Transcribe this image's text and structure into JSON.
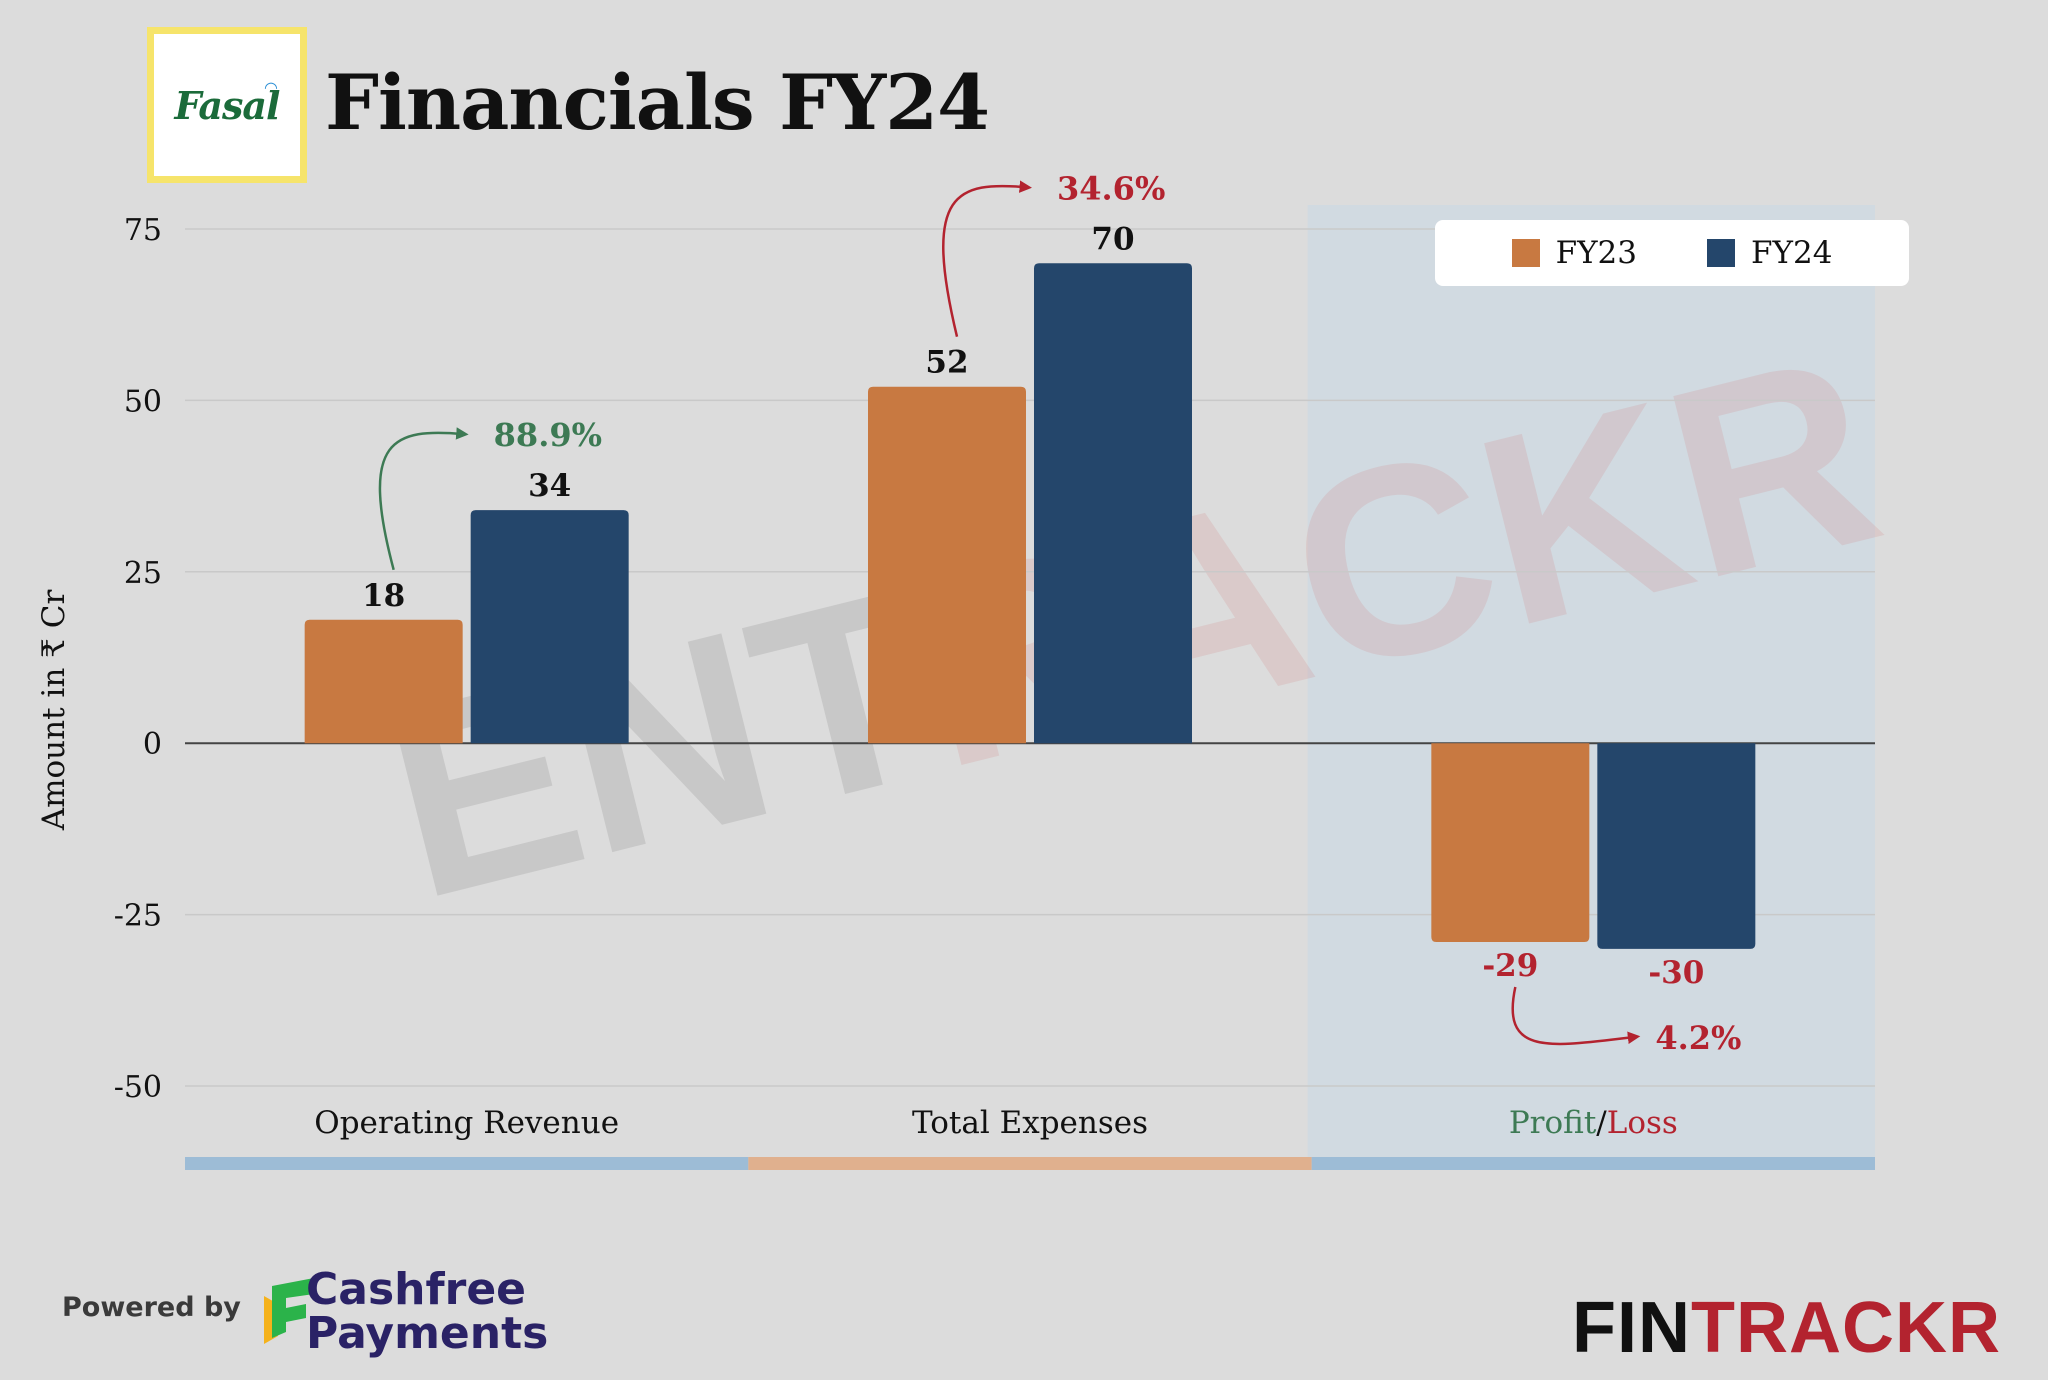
{
  "header": {
    "logo_text": "Fasal",
    "title": "Financials FY24"
  },
  "chart_data": {
    "type": "bar",
    "categories": [
      "Operating Revenue",
      "Total Expenses",
      "Profit/Loss"
    ],
    "series": [
      {
        "name": "FY23",
        "values": [
          18,
          52,
          -29
        ],
        "color": "#c87941"
      },
      {
        "name": "FY24",
        "values": [
          34,
          70,
          -30
        ],
        "color": "#24466b"
      }
    ],
    "value_labels": [
      [
        "18",
        "52",
        "-29"
      ],
      [
        "34",
        "70",
        "-30"
      ]
    ],
    "growth": [
      {
        "category": "Operating Revenue",
        "label": "88.9%",
        "color": "#3d7a54"
      },
      {
        "category": "Total Expenses",
        "label": "34.6%",
        "color": "#b3232f"
      },
      {
        "category": "Profit/Loss",
        "label": "4.2%",
        "color": "#b3232f"
      }
    ],
    "profit_label": {
      "profit": "Profit",
      "sep": "/",
      "loss": "Loss",
      "profit_color": "#3d7a54",
      "loss_color": "#b3232f"
    },
    "ylabel": "Amount in ₹ Cr",
    "ylim": [
      -50,
      75
    ],
    "yticks": [
      75,
      50,
      25,
      0,
      -25,
      -50
    ],
    "grid": true,
    "legend_position": "top-right",
    "category_underline_colors": [
      "#9dbcd6",
      "#e0b08e",
      "#9dbcd6"
    ],
    "highlight_category": "Profit/Loss"
  },
  "watermark": {
    "part1": "ENT",
    "part2": "RACKR"
  },
  "footer": {
    "powered_by": "Powered by",
    "cashfree_line1": "Cashfree",
    "cashfree_line2": "Payments",
    "brand_part1": "FIN",
    "brand_part2": "TRACKR"
  }
}
